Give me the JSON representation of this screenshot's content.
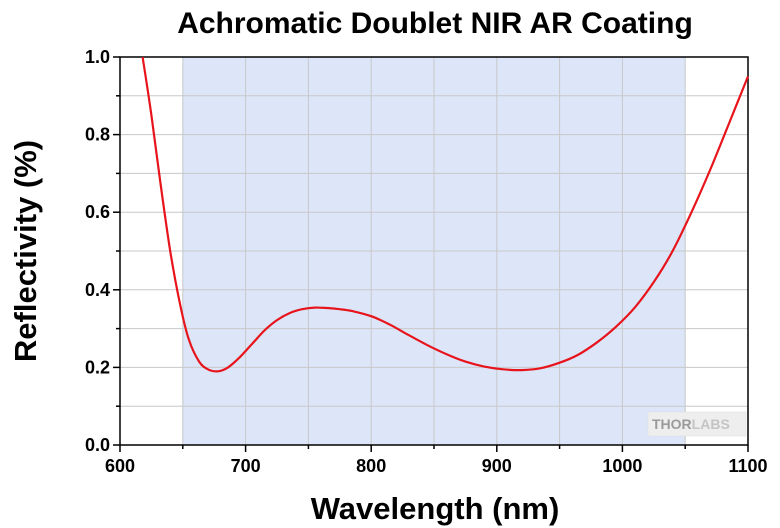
{
  "chart_data": {
    "type": "line",
    "title": "Achromatic Doublet NIR AR Coating",
    "xlabel": "Wavelength (nm)",
    "ylabel": "Reflectivity (%)",
    "xlim": [
      600,
      1100
    ],
    "ylim": [
      0.0,
      1.0
    ],
    "xticks": [
      "600",
      "700",
      "800",
      "900",
      "1000",
      "1100"
    ],
    "yticks": [
      "0.0",
      "0.2",
      "0.4",
      "0.6",
      "0.8",
      "1.0"
    ],
    "grid": true,
    "shaded_band": {
      "x_start": 650,
      "x_end": 1050,
      "color": "#dce6f8"
    },
    "series": [
      {
        "color": "#e8141c",
        "x": [
          618,
          625,
          632,
          640,
          648,
          655,
          663,
          670,
          678,
          686,
          695,
          705,
          715,
          725,
          735,
          745,
          755,
          765,
          775,
          785,
          800,
          815,
          830,
          845,
          860,
          875,
          890,
          905,
          920,
          935,
          950,
          965,
          980,
          995,
          1010,
          1025,
          1040,
          1055,
          1070,
          1085,
          1100
        ],
        "y": [
          1.0,
          0.85,
          0.68,
          0.5,
          0.36,
          0.27,
          0.215,
          0.195,
          0.19,
          0.2,
          0.225,
          0.26,
          0.295,
          0.322,
          0.34,
          0.35,
          0.354,
          0.353,
          0.35,
          0.345,
          0.332,
          0.31,
          0.283,
          0.257,
          0.234,
          0.215,
          0.202,
          0.195,
          0.193,
          0.198,
          0.212,
          0.233,
          0.265,
          0.305,
          0.355,
          0.42,
          0.5,
          0.6,
          0.71,
          0.83,
          0.95
        ]
      }
    ]
  },
  "logo": {
    "text_a": "THOR",
    "text_b": "LABS"
  }
}
